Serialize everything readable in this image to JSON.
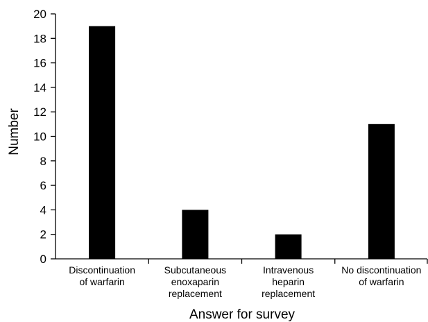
{
  "chart_data": {
    "type": "bar",
    "categories": [
      [
        "Discontinuation",
        "of warfarin"
      ],
      [
        "Subcutaneous",
        "enoxaparin",
        "replacement"
      ],
      [
        "Intravenous",
        "heparin",
        "replacement"
      ],
      [
        "No discontinuation",
        "of warfarin"
      ]
    ],
    "values": [
      19,
      4,
      2,
      11
    ],
    "title": "",
    "xlabel": "Answer for survey",
    "ylabel": "Number",
    "ylim": [
      0,
      20
    ],
    "yticks": [
      0,
      2,
      4,
      6,
      8,
      10,
      12,
      14,
      16,
      18,
      20
    ],
    "grid": false,
    "bar_color": "#000000"
  }
}
